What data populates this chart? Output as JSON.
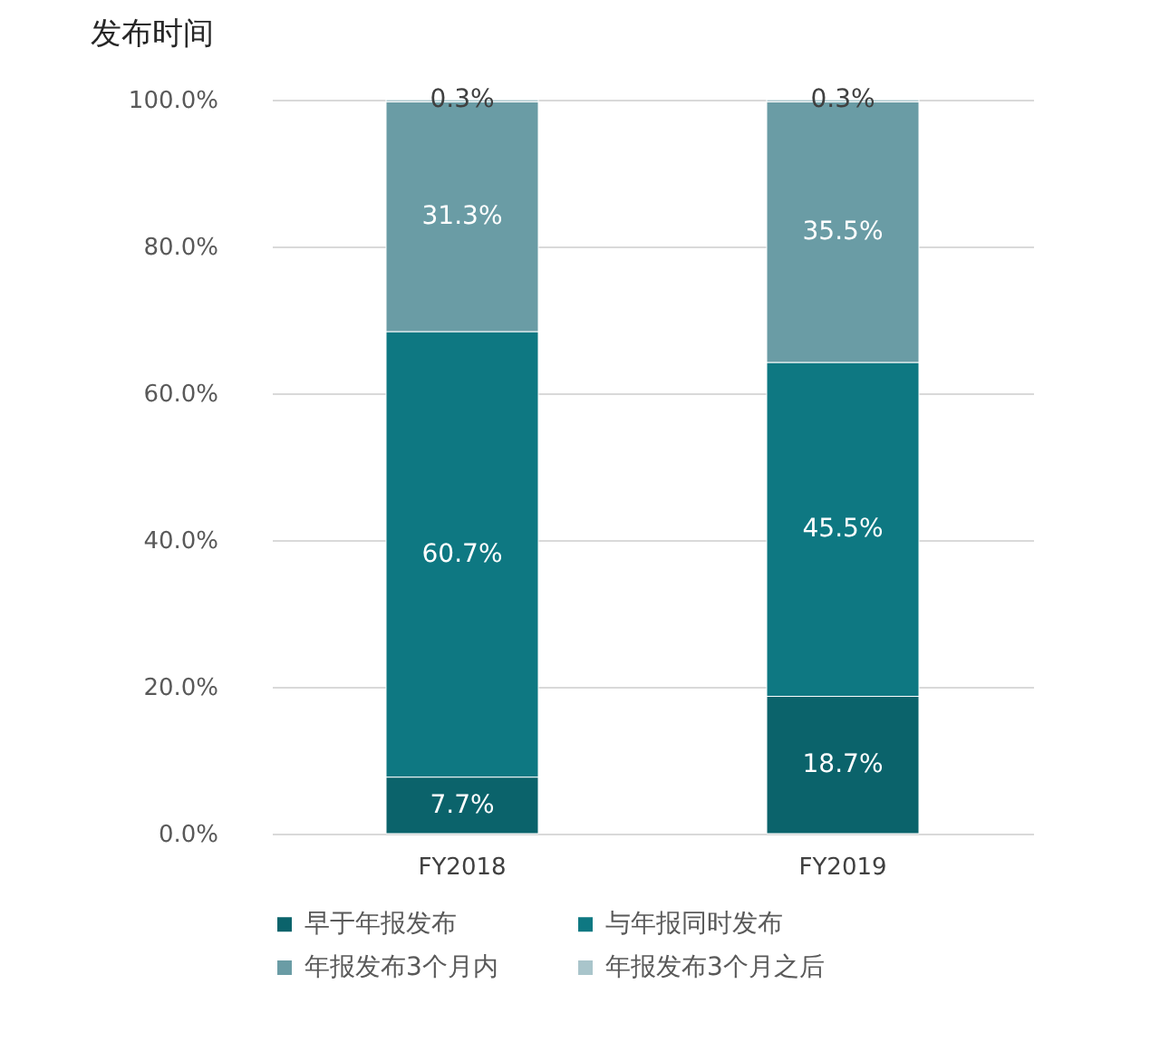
{
  "chart_data": {
    "type": "bar",
    "title": "发布时间",
    "stacked": true,
    "categories": [
      "FY2018",
      "FY2019"
    ],
    "series": [
      {
        "name": "早于年报发布",
        "color": "#0b636b",
        "values": [
          7.7,
          18.7
        ],
        "value_labels": [
          "7.7%",
          "18.7%"
        ]
      },
      {
        "name": "与年报同时发布",
        "color": "#0e7882",
        "values": [
          60.7,
          45.5
        ],
        "value_labels": [
          "60.7%",
          "45.5%"
        ]
      },
      {
        "name": "年报发布3个月内",
        "color": "#6a9ca5",
        "values": [
          31.3,
          35.5
        ],
        "value_labels": [
          "31.3%",
          "35.5%"
        ]
      },
      {
        "name": "年报发布3个月之后",
        "color": "#a9c5cb",
        "values": [
          0.3,
          0.3
        ],
        "value_labels": [
          "0.3%",
          "0.3%"
        ]
      }
    ],
    "ylim": [
      0,
      100
    ],
    "yticks": [
      {
        "value": 0,
        "label": "0.0%"
      },
      {
        "value": 20,
        "label": "20.0%"
      },
      {
        "value": 40,
        "label": "40.0%"
      },
      {
        "value": 60,
        "label": "60.0%"
      },
      {
        "value": 80,
        "label": "80.0%"
      },
      {
        "value": 100,
        "label": "100.0%"
      }
    ],
    "grid": "y",
    "legend": "bottom"
  }
}
